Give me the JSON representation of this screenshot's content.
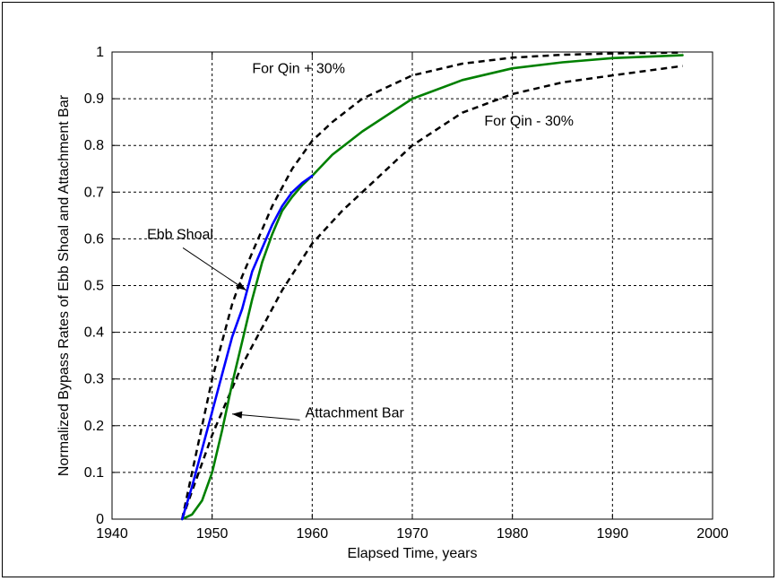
{
  "chart_data": {
    "type": "line",
    "title": "",
    "xlabel": "Elapsed Time, years",
    "ylabel": "Normalized Bypass Rates of Ebb Shoal and Attachment Bar",
    "xlim": [
      1940,
      2000
    ],
    "ylim": [
      0,
      1
    ],
    "xticks": [
      1940,
      1950,
      1960,
      1970,
      1980,
      1990,
      2000
    ],
    "yticks": [
      0,
      0.1,
      0.2,
      0.3,
      0.4,
      0.5,
      0.6,
      0.7,
      0.8,
      0.9,
      1
    ],
    "ytick_labels": [
      "0",
      "0.1",
      "0.2",
      "0.3",
      "0.4",
      "0.5",
      "0.6",
      "0.7",
      "0.8",
      "0.9",
      "1"
    ],
    "grid": true,
    "series": [
      {
        "name": "Ebb Shoal",
        "color": "#0000ff",
        "style": "solid",
        "x": [
          1947,
          1948,
          1949,
          1950,
          1951,
          1952,
          1953,
          1954,
          1955,
          1956,
          1957,
          1958,
          1959,
          1960
        ],
        "y": [
          0,
          0.07,
          0.15,
          0.23,
          0.31,
          0.39,
          0.45,
          0.53,
          0.58,
          0.63,
          0.67,
          0.7,
          0.72,
          0.735
        ]
      },
      {
        "name": "Attachment Bar",
        "color": "#008000",
        "style": "solid",
        "x": [
          1947,
          1948,
          1949,
          1950,
          1951,
          1952,
          1953,
          1954,
          1955,
          1956,
          1957,
          1958,
          1959,
          1960,
          1962,
          1965,
          1970,
          1975,
          1980,
          1985,
          1990,
          1997
        ],
        "y": [
          0,
          0.01,
          0.04,
          0.1,
          0.19,
          0.29,
          0.38,
          0.47,
          0.55,
          0.61,
          0.66,
          0.69,
          0.715,
          0.735,
          0.78,
          0.83,
          0.9,
          0.94,
          0.965,
          0.978,
          0.987,
          0.993
        ]
      },
      {
        "name": "For Qin + 30%",
        "color": "#000000",
        "style": "dashed",
        "x": [
          1947,
          1948,
          1949,
          1950,
          1951,
          1952,
          1953,
          1954,
          1955,
          1956,
          1957,
          1958,
          1960,
          1962,
          1965,
          1970,
          1975,
          1980,
          1985,
          1990,
          1997
        ],
        "y": [
          0,
          0.1,
          0.2,
          0.3,
          0.38,
          0.46,
          0.52,
          0.57,
          0.62,
          0.67,
          0.71,
          0.75,
          0.81,
          0.85,
          0.9,
          0.95,
          0.975,
          0.988,
          0.994,
          0.997,
          0.999
        ]
      },
      {
        "name": "For Qin - 30%",
        "color": "#000000",
        "style": "dashed",
        "x": [
          1947,
          1948,
          1949,
          1950,
          1951,
          1952,
          1953,
          1954,
          1955,
          1957,
          1960,
          1963,
          1965,
          1970,
          1975,
          1980,
          1985,
          1990,
          1997
        ],
        "y": [
          0,
          0.06,
          0.12,
          0.18,
          0.23,
          0.28,
          0.33,
          0.37,
          0.41,
          0.49,
          0.59,
          0.66,
          0.7,
          0.8,
          0.87,
          0.91,
          0.935,
          0.95,
          0.97
        ]
      }
    ],
    "annotations": [
      {
        "text": "For Qin + 30%",
        "x": 1954,
        "y": 0.955
      },
      {
        "text": "For Qin - 30%",
        "x": 1977.2,
        "y": 0.843
      },
      {
        "text": "Ebb Shoal",
        "x": 1943.5,
        "y": 0.6,
        "arrow_to": [
          1953.4,
          0.49
        ]
      },
      {
        "text": "Attachment Bar",
        "x": 1959.3,
        "y": 0.218,
        "arrow_to": [
          1952,
          0.225
        ]
      }
    ]
  }
}
